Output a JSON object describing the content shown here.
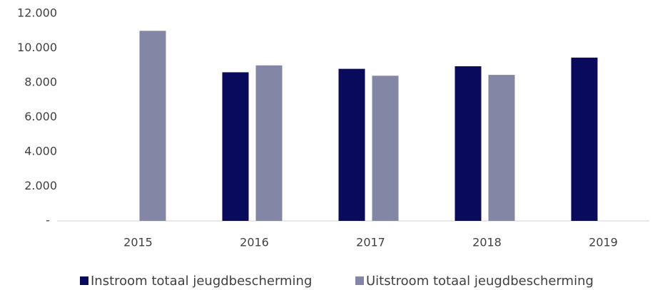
{
  "chart_data": {
    "type": "bar",
    "categories": [
      "2015",
      "2016",
      "2017",
      "2018",
      "2019"
    ],
    "series": [
      {
        "name": "Instroom totaal jeugdbescherming",
        "color": "#0a0a5c",
        "values": [
          null,
          8600,
          8800,
          8950,
          9450
        ]
      },
      {
        "name": "Uitstroom totaal jeugdbescherming",
        "color": "#8486a6",
        "values": [
          11000,
          9000,
          8400,
          8450,
          null
        ]
      }
    ],
    "ylim": [
      0,
      12000
    ],
    "yticks": [
      {
        "value": 0,
        "label": "-"
      },
      {
        "value": 2000,
        "label": "2.000"
      },
      {
        "value": 4000,
        "label": "4.000"
      },
      {
        "value": 6000,
        "label": "6.000"
      },
      {
        "value": 8000,
        "label": "8.000"
      },
      {
        "value": 10000,
        "label": "10.000"
      },
      {
        "value": 12000,
        "label": "12.000"
      }
    ],
    "legend": "bottom"
  }
}
